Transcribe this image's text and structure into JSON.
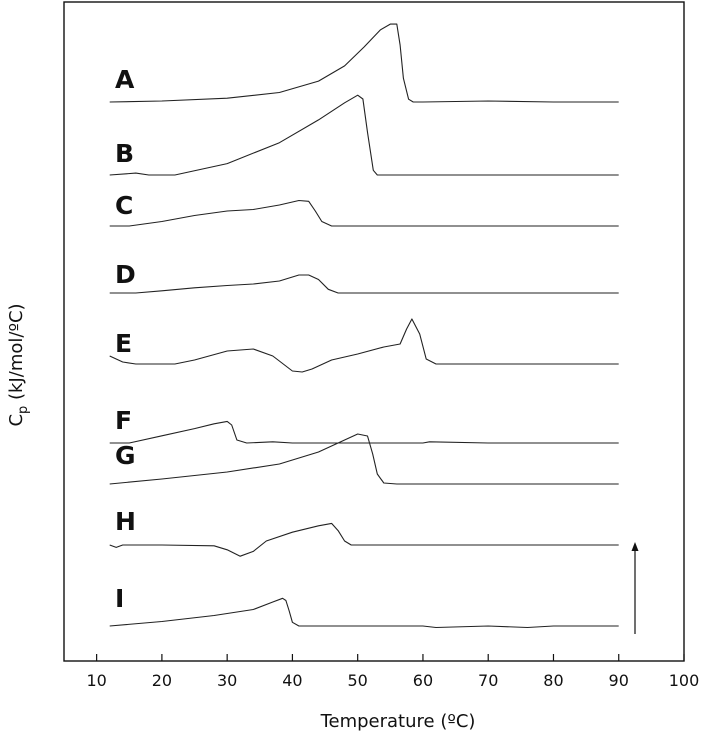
{
  "chart_data": {
    "type": "line",
    "title": "",
    "xlabel": "Temperature (ºC)",
    "ylabel_main": "C",
    "ylabel_sub": "p",
    "ylabel_rest": " (kJ/mol/ºC)",
    "xlim": [
      5,
      100
    ],
    "xticks": [
      "10",
      "20",
      "30",
      "40",
      "50",
      "60",
      "70",
      "80",
      "90",
      "100"
    ],
    "y_axis_ticks_shown": false,
    "grid": false,
    "legend": "none",
    "scale_arrow": true,
    "series": [
      {
        "name": "A",
        "x": [
          12,
          20,
          30,
          38,
          44,
          48,
          51,
          53.5,
          55,
          56,
          56.5,
          57,
          57.8,
          58.5,
          60,
          70,
          80,
          90
        ],
        "y": [
          0,
          0.01,
          0.04,
          0.1,
          0.22,
          0.38,
          0.58,
          0.76,
          0.82,
          0.82,
          0.6,
          0.25,
          0.03,
          0,
          0,
          0.01,
          0,
          0
        ]
      },
      {
        "name": "B",
        "x": [
          12,
          16,
          18,
          22,
          30,
          38,
          44,
          48,
          50,
          50.8,
          51.5,
          52.4,
          53,
          60,
          70,
          80,
          90
        ],
        "y": [
          0,
          0.02,
          0,
          0,
          0.12,
          0.34,
          0.58,
          0.76,
          0.84,
          0.8,
          0.45,
          0.05,
          0,
          0,
          0,
          0,
          0
        ]
      },
      {
        "name": "C",
        "x": [
          12,
          15,
          20,
          25,
          30,
          34,
          38,
          41,
          42.5,
          43.5,
          44.5,
          46,
          50,
          60,
          70,
          80,
          90
        ],
        "y": [
          0,
          0,
          0.06,
          0.14,
          0.2,
          0.22,
          0.28,
          0.34,
          0.33,
          0.2,
          0.06,
          0,
          0,
          0,
          0,
          0,
          0
        ]
      },
      {
        "name": "D",
        "x": [
          12,
          16,
          20,
          25,
          30,
          34,
          38,
          41,
          42.5,
          44,
          45.5,
          47,
          50,
          60,
          70,
          80,
          90
        ],
        "y": [
          0,
          0,
          0.03,
          0.07,
          0.1,
          0.12,
          0.16,
          0.24,
          0.24,
          0.18,
          0.05,
          0,
          0,
          0,
          0,
          0,
          0
        ]
      },
      {
        "name": "E",
        "x": [
          12,
          14,
          16,
          19,
          22,
          25,
          30,
          34,
          37,
          40,
          41.5,
          43,
          46,
          50,
          54,
          56.5,
          57.5,
          58.3,
          59.5,
          60.5,
          62,
          70,
          80,
          90
        ],
        "y": [
          0.08,
          0.02,
          0,
          0,
          0,
          0.04,
          0.13,
          0.15,
          0.08,
          -0.07,
          -0.08,
          -0.05,
          0.04,
          0.1,
          0.17,
          0.2,
          0.35,
          0.45,
          0.3,
          0.05,
          0,
          0,
          0,
          0
        ]
      },
      {
        "name": "F",
        "x": [
          12,
          15,
          20,
          25,
          28,
          30,
          30.7,
          31.5,
          33,
          37,
          40,
          50,
          60,
          61,
          70,
          80,
          90
        ],
        "y": [
          0,
          0,
          0.12,
          0.24,
          0.32,
          0.36,
          0.3,
          0.05,
          0,
          0.02,
          0,
          0,
          0,
          0.02,
          0,
          0,
          0
        ]
      },
      {
        "name": "G",
        "x": [
          12,
          20,
          30,
          38,
          44,
          48,
          50,
          51.5,
          52.3,
          53,
          54,
          56,
          60,
          70,
          80,
          90
        ],
        "y": [
          0,
          0.05,
          0.12,
          0.2,
          0.32,
          0.44,
          0.5,
          0.48,
          0.3,
          0.1,
          0.01,
          0,
          0,
          0,
          0,
          0
        ]
      },
      {
        "name": "H",
        "x": [
          12,
          13,
          14,
          20,
          28,
          30,
          32,
          34,
          36,
          40,
          44,
          46,
          47,
          48,
          49,
          52,
          60,
          70,
          80,
          90
        ],
        "y": [
          0,
          -0.03,
          0,
          0,
          -0.01,
          -0.06,
          -0.14,
          -0.08,
          0.05,
          0.16,
          0.24,
          0.27,
          0.18,
          0.05,
          0,
          0,
          0,
          0,
          0,
          0
        ]
      },
      {
        "name": "I",
        "x": [
          12,
          20,
          28,
          34,
          37,
          38.5,
          39,
          39.5,
          40,
          41,
          50,
          60,
          62,
          70,
          76,
          80,
          90
        ],
        "y": [
          0,
          0.06,
          0.14,
          0.22,
          0.32,
          0.37,
          0.34,
          0.2,
          0.05,
          0,
          0,
          0,
          -0.02,
          0,
          -0.02,
          0,
          0
        ]
      }
    ]
  }
}
